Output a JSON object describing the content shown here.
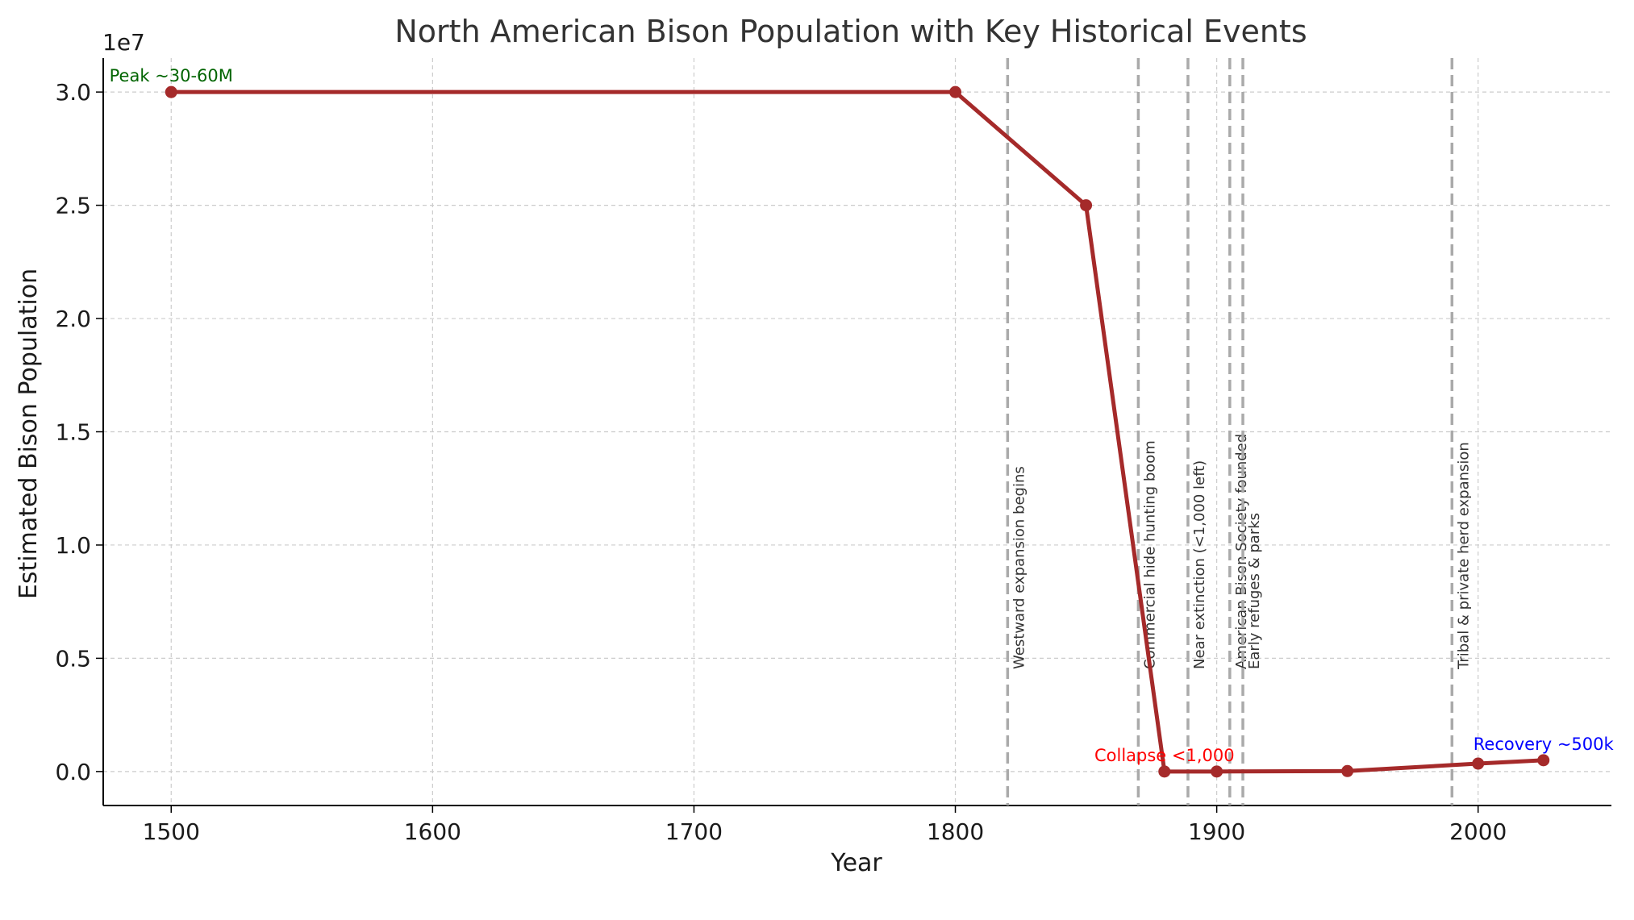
{
  "chart_data": {
    "type": "line",
    "title": "North American Bison Population with Key Historical Events",
    "xlabel": "Year",
    "ylabel": "Estimated Bison Population",
    "y_offset_text": "1e7",
    "xlim": [
      1474,
      2051
    ],
    "ylim": [
      -1500000,
      31500000
    ],
    "xticks": [
      1500,
      1600,
      1700,
      1800,
      1900,
      2000
    ],
    "yticks": [
      0,
      5000000,
      10000000,
      15000000,
      20000000,
      25000000,
      30000000
    ],
    "ytick_labels": [
      "0.0",
      "0.5",
      "1.0",
      "1.5",
      "2.0",
      "2.5",
      "3.0"
    ],
    "grid": true,
    "line_color": "#a52a2a",
    "series": [
      {
        "x": [
          1500,
          1800,
          1850,
          1880,
          1900,
          1950,
          2000,
          2025
        ],
        "y": [
          30000000,
          30000000,
          25000000,
          1000,
          1000,
          20000,
          350000,
          500000
        ]
      }
    ],
    "events": [
      {
        "year": 1820,
        "label": "Westward expansion begins"
      },
      {
        "year": 1870,
        "label": "Commercial hide hunting boom"
      },
      {
        "year": 1889,
        "label": "Near extinction (<1,000 left)"
      },
      {
        "year": 1905,
        "label": "American Bison Society founded"
      },
      {
        "year": 1910,
        "label": "Early refuges & parks"
      },
      {
        "year": 1990,
        "label": "Tribal & private herd expansion"
      }
    ],
    "event_color": "#aaaaaa",
    "annotations": [
      {
        "text": "Peak ~30-60M",
        "x": 1500,
        "y": 30000000,
        "color": "#006400"
      },
      {
        "text": "Collapse <1,000",
        "x": 1880,
        "y": 1000,
        "color": "#ff0000"
      },
      {
        "text": "Recovery ~500k",
        "x": 2025,
        "y": 500000,
        "color": "#0000ff"
      }
    ]
  }
}
